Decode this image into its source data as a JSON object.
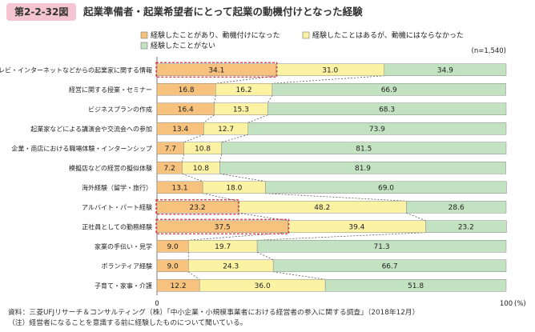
{
  "header": {
    "figure_label": "第2-2-32図",
    "title": "起業準備者・起業希望者にとって起業の動機付けとなった経験"
  },
  "colors": {
    "s1": "#f7c27e",
    "s2": "#fbf2a4",
    "s3": "#c3e2c2",
    "highlight": "#e03030",
    "connector": "#444444"
  },
  "sample_note": "(n=1,540)",
  "footnotes": {
    "source": "資料：三菱UFJリサーチ＆コンサルティング（株）「中小企業・小規模事業者における経営者の参入に関する調査」（2018年12月）",
    "note": "（注）経営者になることを意識する前に経験したものについて聞いている。"
  },
  "chart_data": {
    "type": "bar",
    "orientation": "horizontal",
    "stacked": true,
    "xlim": [
      0,
      100
    ],
    "x_ticks": [
      "0",
      "100"
    ],
    "x_unit": "(%)",
    "legend_position": "top",
    "categories": [
      "本・テレビ・インターネットなどからの起業家に関する情報",
      "経営に関する授業・セミナー",
      "ビジネスプランの作成",
      "起業家などによる講演会や交流会への参加",
      "企業・商店における職場体験・インターンシップ",
      "模擬店などの経営の擬似体験",
      "海外経験（留学・旅行）",
      "アルバイト・パート経験",
      "正社員としての勤務経験",
      "家業の手伝い・見学",
      "ボランティア経験",
      "子育て・家事・介護"
    ],
    "series": [
      {
        "name": "経験したことがあり、動機付けになった",
        "values": [
          34.1,
          16.8,
          16.4,
          13.4,
          7.7,
          7.2,
          13.1,
          23.2,
          37.5,
          9.0,
          9.0,
          12.2
        ]
      },
      {
        "name": "経験したことはあるが、動機にはならなかった",
        "values": [
          31.0,
          16.2,
          15.3,
          12.7,
          10.8,
          10.8,
          18.0,
          48.2,
          39.4,
          19.7,
          24.3,
          36.0
        ]
      },
      {
        "name": "経験したことがない",
        "values": [
          34.9,
          66.9,
          68.3,
          73.9,
          81.5,
          81.9,
          69.0,
          28.6,
          23.2,
          71.3,
          66.7,
          51.8
        ]
      }
    ],
    "highlighted_categories": [
      0,
      7,
      8
    ]
  }
}
